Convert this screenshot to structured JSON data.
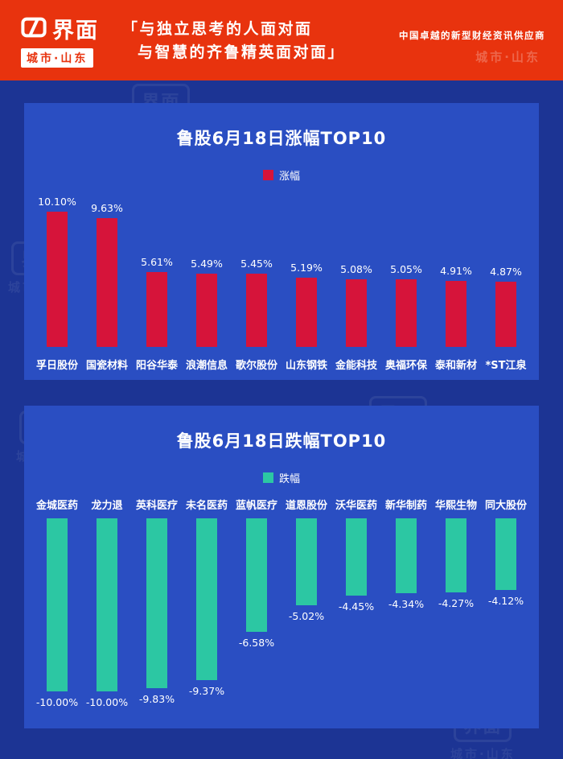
{
  "header": {
    "brand": {
      "logo_text": "界面",
      "region_badge": "城市·山东"
    },
    "quote_line1": "「与独立思考的人面对面",
    "quote_line2": "与智慧的齐鲁精英面对面」",
    "tagline": "中国卓越的新型财经资讯供应商"
  },
  "colors": {
    "header_red": "#e8330e",
    "page_bg": "#1c3494",
    "panel_bg": "#2a4ec2",
    "text_white": "#ffffff"
  },
  "watermark": {
    "logo": "界面",
    "label": "城市·山东"
  },
  "chart_data": [
    {
      "type": "bar",
      "title": "鲁股6月18日涨幅TOP10",
      "legend": "涨幅",
      "legend_position": "top",
      "bar_color": "#d6143a",
      "grid": false,
      "ylim": [
        0,
        10.1
      ],
      "categories": [
        "孚日股份",
        "国瓷材料",
        "阳谷华泰",
        "浪潮信息",
        "歌尔股份",
        "山东钢铁",
        "金能科技",
        "奥福环保",
        "泰和新材",
        "*ST江泉"
      ],
      "values": [
        10.1,
        9.63,
        5.61,
        5.49,
        5.45,
        5.19,
        5.08,
        5.05,
        4.91,
        4.87
      ],
      "labels": [
        "10.10%",
        "9.63%",
        "5.61%",
        "5.49%",
        "5.45%",
        "5.19%",
        "5.08%",
        "5.05%",
        "4.91%",
        "4.87%"
      ]
    },
    {
      "type": "bar",
      "title": "鲁股6月18日跌幅TOP10",
      "legend": "跌幅",
      "legend_position": "top",
      "bar_color": "#2cc7a3",
      "grid": false,
      "ylim": [
        -10,
        0
      ],
      "categories": [
        "金城医药",
        "龙力退",
        "英科医疗",
        "未名医药",
        "蓝帆医疗",
        "道恩股份",
        "沃华医药",
        "新华制药",
        "华熙生物",
        "同大股份"
      ],
      "values": [
        -10.0,
        -10.0,
        -9.83,
        -9.37,
        -6.58,
        -5.02,
        -4.45,
        -4.34,
        -4.27,
        -4.12
      ],
      "labels": [
        "-10.00%",
        "-10.00%",
        "-9.83%",
        "-9.37%",
        "-6.58%",
        "-5.02%",
        "-4.45%",
        "-4.34%",
        "-4.27%",
        "-4.12%"
      ]
    }
  ]
}
